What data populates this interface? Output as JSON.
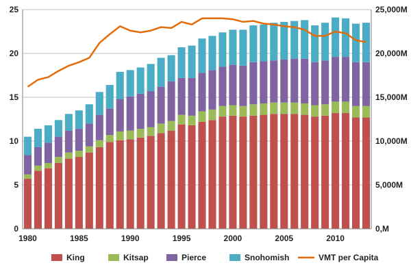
{
  "chart_data": {
    "type": "bar",
    "stacked": true,
    "x": [
      1980,
      1981,
      1982,
      1983,
      1984,
      1985,
      1986,
      1987,
      1988,
      1989,
      1990,
      1991,
      1992,
      1993,
      1994,
      1995,
      1996,
      1997,
      1998,
      1999,
      2000,
      2001,
      2002,
      2003,
      2004,
      2005,
      2006,
      2007,
      2008,
      2009,
      2010,
      2011,
      2012,
      2013
    ],
    "x_tick_labels": [
      "1980",
      "1985",
      "1990",
      "1995",
      "2000",
      "2005",
      "2010"
    ],
    "y_left": {
      "ylim": [
        0,
        25
      ],
      "ticks": [
        "0",
        "5",
        "10",
        "15",
        "20",
        "25"
      ]
    },
    "y_right": {
      "ylim": [
        0,
        25000
      ],
      "ticks": [
        "0,M",
        "5,000M",
        "10,000M",
        "15,000M",
        "20,000M",
        "25,000M"
      ]
    },
    "grid": "horizontal",
    "legend_position": "bottom",
    "series": [
      {
        "name": "King",
        "color": "#c0504d",
        "values": [
          5.7,
          6.6,
          6.9,
          7.5,
          8.0,
          8.2,
          8.7,
          9.3,
          9.9,
          10.1,
          10.2,
          10.4,
          10.6,
          10.9,
          11.2,
          11.9,
          11.8,
          12.2,
          12.4,
          12.8,
          12.9,
          12.8,
          12.9,
          13.0,
          13.1,
          13.1,
          13.1,
          13.0,
          12.8,
          12.9,
          13.2,
          13.2,
          12.7,
          12.7
        ]
      },
      {
        "name": "Kitsap",
        "color": "#9bbb59",
        "values": [
          0.5,
          0.6,
          0.6,
          0.7,
          0.7,
          0.7,
          0.7,
          0.8,
          0.8,
          1.0,
          1.0,
          1.0,
          1.0,
          1.1,
          1.1,
          1.1,
          1.1,
          1.2,
          1.2,
          1.2,
          1.2,
          1.2,
          1.3,
          1.3,
          1.3,
          1.3,
          1.3,
          1.3,
          1.3,
          1.3,
          1.3,
          1.3,
          1.3,
          1.3
        ]
      },
      {
        "name": "Pierce",
        "color": "#8064a2",
        "values": [
          2.2,
          2.1,
          2.3,
          2.3,
          2.5,
          2.5,
          2.6,
          2.9,
          3.0,
          3.7,
          3.9,
          4.0,
          4.1,
          4.2,
          4.5,
          4.2,
          4.3,
          4.4,
          4.5,
          4.5,
          4.6,
          4.6,
          4.8,
          4.8,
          4.8,
          4.9,
          5.0,
          5.1,
          4.9,
          5.0,
          5.1,
          5.1,
          5.0,
          5.0
        ]
      },
      {
        "name": "Snohomish",
        "color": "#4bacc6",
        "values": [
          2.1,
          2.1,
          2.0,
          1.9,
          1.9,
          2.1,
          2.2,
          2.6,
          2.7,
          3.1,
          3.0,
          3.0,
          3.1,
          3.3,
          3.0,
          3.5,
          3.7,
          3.9,
          3.9,
          3.9,
          4.0,
          4.1,
          4.2,
          4.2,
          4.3,
          4.3,
          4.3,
          4.4,
          4.2,
          4.3,
          4.5,
          4.4,
          4.4,
          4.5
        ]
      }
    ],
    "line_series": {
      "name": "VMT per Capita",
      "color": "#e36c09",
      "axis": "right",
      "values": [
        16200,
        17000,
        17300,
        18000,
        18600,
        19000,
        19500,
        21200,
        22200,
        23100,
        22600,
        22400,
        22600,
        23000,
        22900,
        23600,
        23300,
        24000,
        24000,
        24000,
        23900,
        23600,
        23700,
        23400,
        23300,
        23100,
        23000,
        22700,
        22000,
        22000,
        22500,
        22300,
        21500,
        21300
      ]
    }
  }
}
